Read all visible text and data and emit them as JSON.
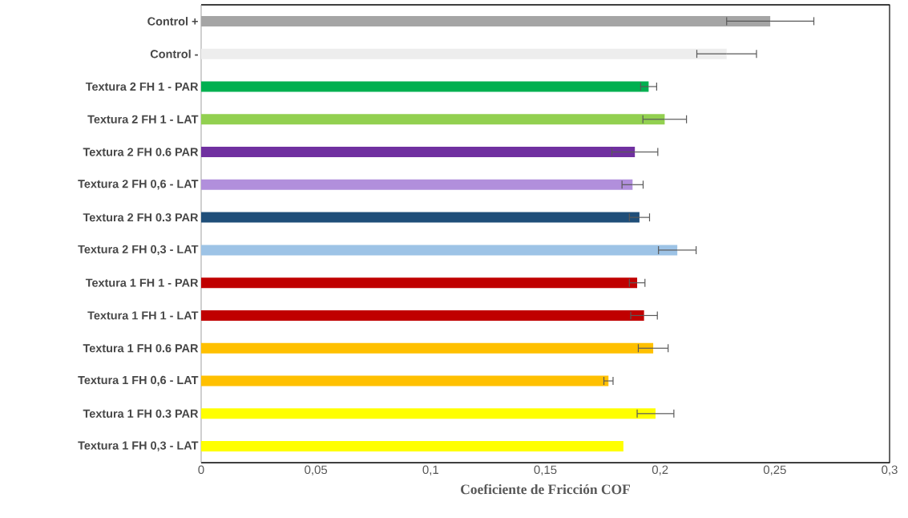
{
  "chart_data": {
    "type": "bar",
    "orientation": "horizontal",
    "xlabel": "Coeficiente de Fricción COF",
    "categories": [
      "Control +",
      "Control -",
      "Textura 2 FH 1 - PAR",
      "Textura 2 FH 1 - LAT",
      "Textura 2 FH 0.6 PAR",
      "Textura 2 FH 0,6 - LAT",
      "Textura 2 FH 0.3 PAR",
      "Textura 2 FH 0,3 - LAT",
      "Textura 1 FH 1 - PAR",
      "Textura 1 FH 1 - LAT",
      "Textura 1 FH 0.6 PAR",
      "Textura 1 FH 0,6 - LAT",
      "Textura 1 FH 0.3 PAR",
      "Textura 1 FH 0,3 - LAT"
    ],
    "values": [
      0.248,
      0.229,
      0.195,
      0.202,
      0.189,
      0.188,
      0.191,
      0.2075,
      0.19,
      0.193,
      0.197,
      0.1775,
      0.198,
      0.184
    ],
    "errors": [
      0.019,
      0.013,
      0.0035,
      0.0095,
      0.01,
      0.0046,
      0.0044,
      0.0082,
      0.0034,
      0.0058,
      0.0065,
      0.002,
      0.008,
      null
    ],
    "colors": [
      "#a5a5a5",
      "#ededed",
      "#00b050",
      "#92d050",
      "#7030a0",
      "#b18fdc",
      "#1f4e79",
      "#9dc3e6",
      "#c00000",
      "#c00000",
      "#ffc000",
      "#ffc000",
      "#ffff00",
      "#ffff00"
    ],
    "xlim": [
      0,
      0.3
    ],
    "xticks": [
      {
        "value": 0,
        "label": "0"
      },
      {
        "value": 0.05,
        "label": "0,05"
      },
      {
        "value": 0.1,
        "label": "0,1"
      },
      {
        "value": 0.15,
        "label": "0,15"
      },
      {
        "value": 0.2,
        "label": "0,2"
      },
      {
        "value": 0.25,
        "label": "0,25"
      },
      {
        "value": 0.3,
        "label": "0,3"
      }
    ],
    "grid": false
  }
}
